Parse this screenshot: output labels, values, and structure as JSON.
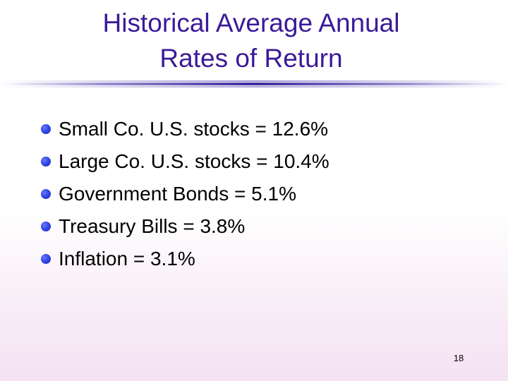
{
  "slide": {
    "title_lines": [
      "Historical Average Annual",
      "Rates of Return"
    ],
    "bullets": [
      "Small Co. U.S. stocks = 12.6%",
      "Large Co. U.S. stocks = 10.4%",
      "Government Bonds = 5.1%",
      "Treasury Bills = 3.8%",
      "Inflation = 3.1%"
    ],
    "page_number": "18"
  },
  "colors": {
    "title": "#3a1a99",
    "bullet_dot": "#3548e6",
    "divider_center": "#4a3aa8",
    "background_bottom": "#f5e2f3"
  }
}
